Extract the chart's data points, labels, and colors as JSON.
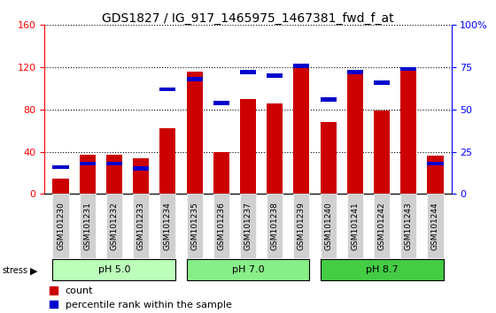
{
  "title": "GDS1827 / IG_917_1465975_1467381_fwd_f_at",
  "samples": [
    "GSM101230",
    "GSM101231",
    "GSM101232",
    "GSM101233",
    "GSM101234",
    "GSM101235",
    "GSM101236",
    "GSM101237",
    "GSM101238",
    "GSM101239",
    "GSM101240",
    "GSM101241",
    "GSM101242",
    "GSM101243",
    "GSM101244"
  ],
  "count_values": [
    15,
    37,
    37,
    34,
    62,
    116,
    40,
    90,
    86,
    122,
    68,
    117,
    79,
    120,
    36
  ],
  "percentile_values": [
    16,
    18,
    18,
    15,
    62,
    68,
    54,
    72,
    70,
    76,
    56,
    72,
    66,
    74,
    18
  ],
  "groups": [
    {
      "label": "pH 5.0",
      "start": 0,
      "end": 4,
      "color": "#bbffbb"
    },
    {
      "label": "pH 7.0",
      "start": 5,
      "end": 9,
      "color": "#88ee88"
    },
    {
      "label": "pH 8.7",
      "start": 10,
      "end": 14,
      "color": "#44cc44"
    }
  ],
  "stress_label": "stress",
  "ylim_left": [
    0,
    160
  ],
  "ylim_right": [
    0,
    100
  ],
  "yticks_left": [
    0,
    40,
    80,
    120,
    160
  ],
  "yticks_right": [
    0,
    25,
    50,
    75,
    100
  ],
  "ytick_labels_right": [
    "0",
    "25",
    "50",
    "75",
    "100%"
  ],
  "bar_color_red": "#cc0000",
  "bar_color_blue": "#0000cc",
  "bar_width": 0.6,
  "title_fontsize": 10,
  "tick_label_fontsize": 7,
  "legend_fontsize": 8,
  "xlim": [
    -0.6,
    14.6
  ]
}
